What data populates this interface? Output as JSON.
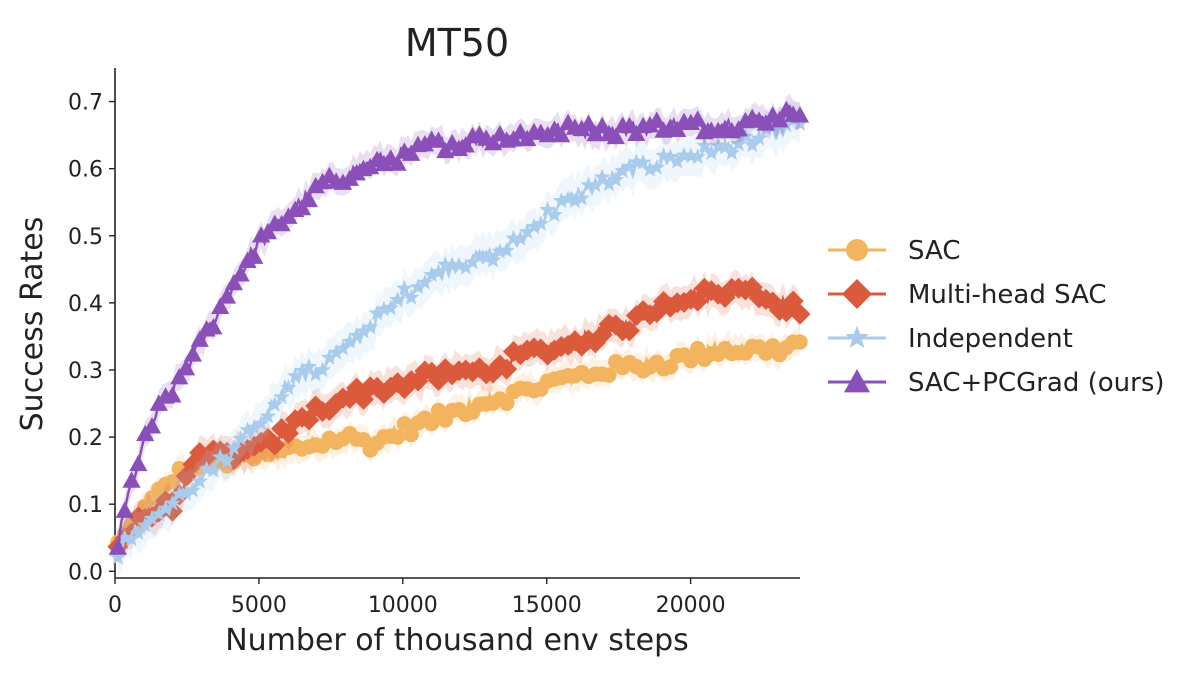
{
  "chart_data": {
    "type": "line",
    "title": "MT50",
    "xlabel": "Number of thousand env steps",
    "ylabel": "Success Rates",
    "xlim": [
      0,
      23800
    ],
    "ylim": [
      -0.01,
      0.75
    ],
    "xticks": [
      0,
      5000,
      10000,
      15000,
      20000
    ],
    "yticks": [
      0.0,
      0.1,
      0.2,
      0.3,
      0.4,
      0.5,
      0.6,
      0.7
    ],
    "xtick_labels": [
      "0",
      "5000",
      "10000",
      "15000",
      "20000"
    ],
    "ytick_labels": [
      "0.0",
      "0.1",
      "0.2",
      "0.3",
      "0.4",
      "0.5",
      "0.6",
      "0.7"
    ],
    "grid": false,
    "legend_position": "right",
    "series": [
      {
        "name": "SAC",
        "color": "#f2b45f",
        "marker": "circle",
        "x": [
          100,
          1000,
          2000,
          3000,
          4000,
          5000,
          6000,
          7000,
          8000,
          9000,
          10000,
          11000,
          12000,
          13000,
          14000,
          15000,
          16000,
          17000,
          18000,
          19000,
          20000,
          21000,
          22000,
          23000,
          23800
        ],
        "y": [
          0.04,
          0.09,
          0.14,
          0.16,
          0.165,
          0.17,
          0.18,
          0.19,
          0.2,
          0.19,
          0.21,
          0.225,
          0.24,
          0.255,
          0.265,
          0.28,
          0.29,
          0.3,
          0.305,
          0.31,
          0.32,
          0.33,
          0.33,
          0.33,
          0.34
        ],
        "band": 0.02
      },
      {
        "name": "Multi-head SAC",
        "color": "#dc5a3c",
        "marker": "diamond",
        "x": [
          100,
          1000,
          2000,
          3000,
          4000,
          5000,
          6000,
          7000,
          8000,
          9000,
          10000,
          11000,
          12000,
          13000,
          14000,
          15000,
          16000,
          17000,
          18000,
          19000,
          20000,
          21000,
          22000,
          23000,
          23800
        ],
        "y": [
          0.04,
          0.08,
          0.1,
          0.17,
          0.175,
          0.18,
          0.21,
          0.24,
          0.26,
          0.27,
          0.28,
          0.29,
          0.295,
          0.3,
          0.32,
          0.33,
          0.34,
          0.355,
          0.37,
          0.4,
          0.41,
          0.415,
          0.42,
          0.4,
          0.39
        ],
        "band": 0.025
      },
      {
        "name": "Independent",
        "color": "#a9cbec",
        "marker": "star",
        "x": [
          100,
          1000,
          2000,
          3000,
          4000,
          5000,
          6000,
          7000,
          8000,
          9000,
          10000,
          11000,
          12000,
          13000,
          14000,
          15000,
          16000,
          17000,
          18000,
          19000,
          20000,
          21000,
          22000,
          23000,
          23800
        ],
        "y": [
          0.03,
          0.07,
          0.1,
          0.14,
          0.17,
          0.22,
          0.28,
          0.3,
          0.33,
          0.37,
          0.41,
          0.44,
          0.46,
          0.47,
          0.49,
          0.53,
          0.56,
          0.58,
          0.6,
          0.61,
          0.62,
          0.63,
          0.64,
          0.655,
          0.67
        ],
        "band": 0.03
      },
      {
        "name": "SAC+PCGrad (ours)",
        "color": "#8a4fb8",
        "marker": "triangle",
        "x": [
          100,
          500,
          1000,
          1500,
          2000,
          3000,
          4000,
          5000,
          6000,
          7000,
          8000,
          9000,
          10000,
          11000,
          12000,
          13000,
          14000,
          15000,
          16000,
          17000,
          18000,
          19000,
          20000,
          21000,
          22000,
          23000,
          23800
        ],
        "y": [
          0.04,
          0.12,
          0.19,
          0.24,
          0.27,
          0.34,
          0.42,
          0.49,
          0.53,
          0.57,
          0.59,
          0.61,
          0.62,
          0.635,
          0.64,
          0.645,
          0.65,
          0.655,
          0.66,
          0.655,
          0.66,
          0.665,
          0.665,
          0.665,
          0.67,
          0.675,
          0.69
        ],
        "band": 0.02
      }
    ]
  }
}
